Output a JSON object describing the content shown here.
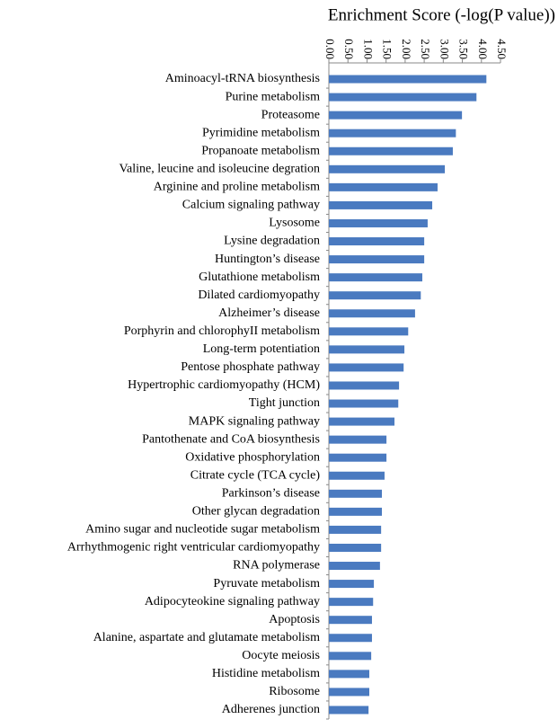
{
  "chart_data": {
    "type": "bar",
    "orientation": "horizontal",
    "title": "Enrichment  Score (-log(P value))",
    "categories": [
      "Aminoacyl-tRNA  biosynthesis",
      "Purine metabolism",
      "Proteasome",
      "Pyrimidine metabolism",
      "Propanoate metabolism",
      "Valine, leucine and isoleucine degration",
      "Arginine and proline metabolism",
      "Calcium signaling pathway",
      "Lysosome",
      "Lysine degradation",
      "Huntington’s disease",
      "Glutathione metabolism",
      "Dilated cardiomyopathy",
      "Alzheimer’s disease",
      "Porphyrin and chlorophyII metabolism",
      "Long-term potentiation",
      "Pentose phosphate pathway",
      "Hypertrophic cardiomyopathy (HCM)",
      "Tight junction",
      "MAPK signaling pathway",
      "Pantothenate and CoA biosynthesis",
      "Oxidative phosphorylation",
      "Citrate cycle (TCA cycle)",
      "Parkinson’s disease",
      "Other glycan degradation",
      "Amino sugar and nucleotide sugar metabolism",
      "Arrhythmogenic right ventricular cardiomyopathy",
      "RNA polymerase",
      "Pyruvate metabolism",
      "Adipocyteokine signaling pathway",
      "Apoptosis",
      "Alanine, aspartate and glutamate metabolism",
      "Oocyte meiosis",
      "Histidine  metabolism",
      "Ribosome",
      "Adherenes junction"
    ],
    "values": [
      4.13,
      3.87,
      3.49,
      3.33,
      3.25,
      3.04,
      2.85,
      2.71,
      2.59,
      2.5,
      2.5,
      2.45,
      2.41,
      2.26,
      2.08,
      1.98,
      1.96,
      1.84,
      1.82,
      1.72,
      1.51,
      1.51,
      1.46,
      1.39,
      1.39,
      1.37,
      1.37,
      1.34,
      1.18,
      1.16,
      1.13,
      1.13,
      1.11,
      1.06,
      1.06,
      1.04
    ],
    "color": "#4a7ac0",
    "xlim": [
      0,
      4.5
    ],
    "xticks": [
      {
        "value": 0,
        "label": "0.00"
      },
      {
        "value": 0.5,
        "label": "0.50"
      },
      {
        "value": 1,
        "label": "1.00"
      },
      {
        "value": 1.5,
        "label": "1.50"
      },
      {
        "value": 2,
        "label": "2.00"
      },
      {
        "value": 2.5,
        "label": "2.50"
      },
      {
        "value": 3,
        "label": "3.00"
      },
      {
        "value": 3.5,
        "label": "3.50"
      },
      {
        "value": 4,
        "label": "4.00"
      },
      {
        "value": 4.5,
        "label": "4.50"
      }
    ]
  }
}
